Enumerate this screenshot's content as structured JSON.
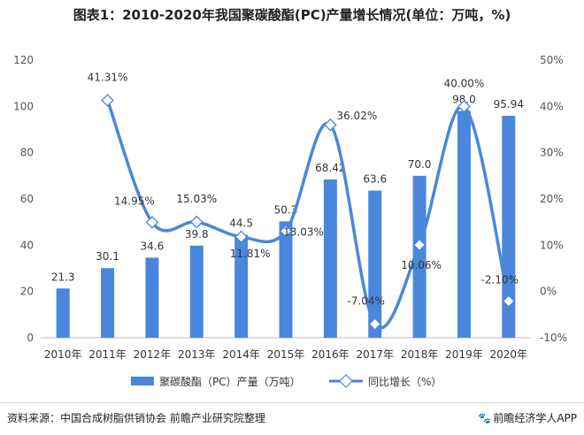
{
  "title": "图表1：2010-2020年我国聚碳酸酯(PC)产量增长情况(单位：万吨，%)",
  "chart_data": {
    "type": "bar+line",
    "categories": [
      "2010年",
      "2011年",
      "2012年",
      "2013年",
      "2014年",
      "2015年",
      "2016年",
      "2017年",
      "2018年",
      "2019年",
      "2020年"
    ],
    "series": [
      {
        "name": "聚碳酸酯（PC）产量（万吨）",
        "type": "bar",
        "axis": "left",
        "values": [
          21.3,
          30.1,
          34.6,
          39.8,
          44.5,
          50.3,
          68.42,
          63.6,
          70.0,
          98.0,
          95.94
        ],
        "labels": [
          "21.3",
          "30.1",
          "34.6",
          "39.8",
          "44.5",
          "50.3",
          "68.42",
          "63.6",
          "70.0",
          "98.0",
          "95.94"
        ],
        "color": "#4a87dc"
      },
      {
        "name": "同比增长（%）",
        "type": "line",
        "axis": "right",
        "values": [
          null,
          41.31,
          14.95,
          15.03,
          11.81,
          13.03,
          36.02,
          -7.04,
          10.06,
          40.0,
          -2.1
        ],
        "labels": [
          "",
          "41.31%",
          "14.95%",
          "15.03%",
          "11.81%",
          "13.03%",
          "36.02%",
          "-7.04%",
          "10.06%",
          "40.00%",
          "-2.10%"
        ],
        "color": "#4a87dc"
      }
    ],
    "y_left": {
      "min": 0,
      "max": 120,
      "ticks": [
        0,
        20,
        40,
        60,
        80,
        100,
        120
      ]
    },
    "y_right": {
      "min": -10,
      "max": 50,
      "ticks": [
        "-10%",
        "0%",
        "10%",
        "20%",
        "30%",
        "40%",
        "50%"
      ],
      "tick_values": [
        -10,
        0,
        10,
        20,
        30,
        40,
        50
      ]
    },
    "grid": false,
    "legend_position": "bottom"
  },
  "footer": {
    "source": "资料来源：中国合成树脂供销协会 前瞻产业研究院整理",
    "brand": "前瞻经济学人APP",
    "brand_icon": "paw-icon"
  }
}
